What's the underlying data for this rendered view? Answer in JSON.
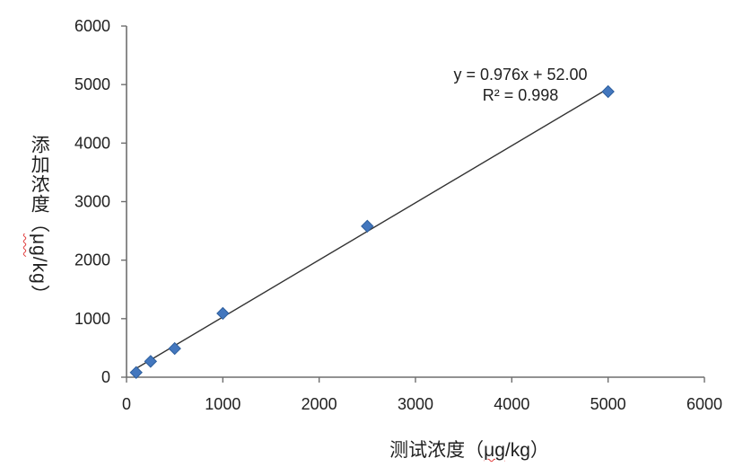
{
  "figure": {
    "x_axis_title": {
      "prefix": "测试浓度（",
      "unit": "μg",
      "suffix": "/kg）"
    },
    "y_axis_title": {
      "prefix": "添加浓度（",
      "unit": "μg",
      "suffix": "/kg）"
    },
    "annotation": {
      "equation": "y = 0.976x + 52.00",
      "r_squared": "R² = 0.998"
    }
  },
  "chart_data": {
    "type": "scatter",
    "title": "",
    "xlabel": "测试浓度（μg/kg）",
    "ylabel": "添加浓度（μg/kg）",
    "x": [
      100,
      250,
      500,
      1000,
      2500,
      5000
    ],
    "y": [
      80,
      270,
      490,
      1090,
      2580,
      4880
    ],
    "xlim": [
      0,
      6000
    ],
    "ylim": [
      0,
      6000
    ],
    "x_ticks": [
      0,
      1000,
      2000,
      3000,
      4000,
      5000,
      6000
    ],
    "y_ticks": [
      0,
      1000,
      2000,
      3000,
      4000,
      5000,
      6000
    ],
    "grid": false,
    "legend": false,
    "marker": "diamond",
    "trendline": {
      "slope": 0.976,
      "intercept": 52.0,
      "r2": 0.998,
      "x_start": 100,
      "x_end": 5000
    },
    "annotation_text": [
      "y = 0.976x + 52.00",
      "R² = 0.998"
    ],
    "annotation_position": "upper-right above trendline",
    "colors": {
      "marker": "#4377be",
      "marker_border": "#2e5f9e",
      "trendline": "#333333",
      "axis": "#6e6e6e",
      "text": "#1f1f1f",
      "spellcheck": "#e03a3a"
    }
  }
}
